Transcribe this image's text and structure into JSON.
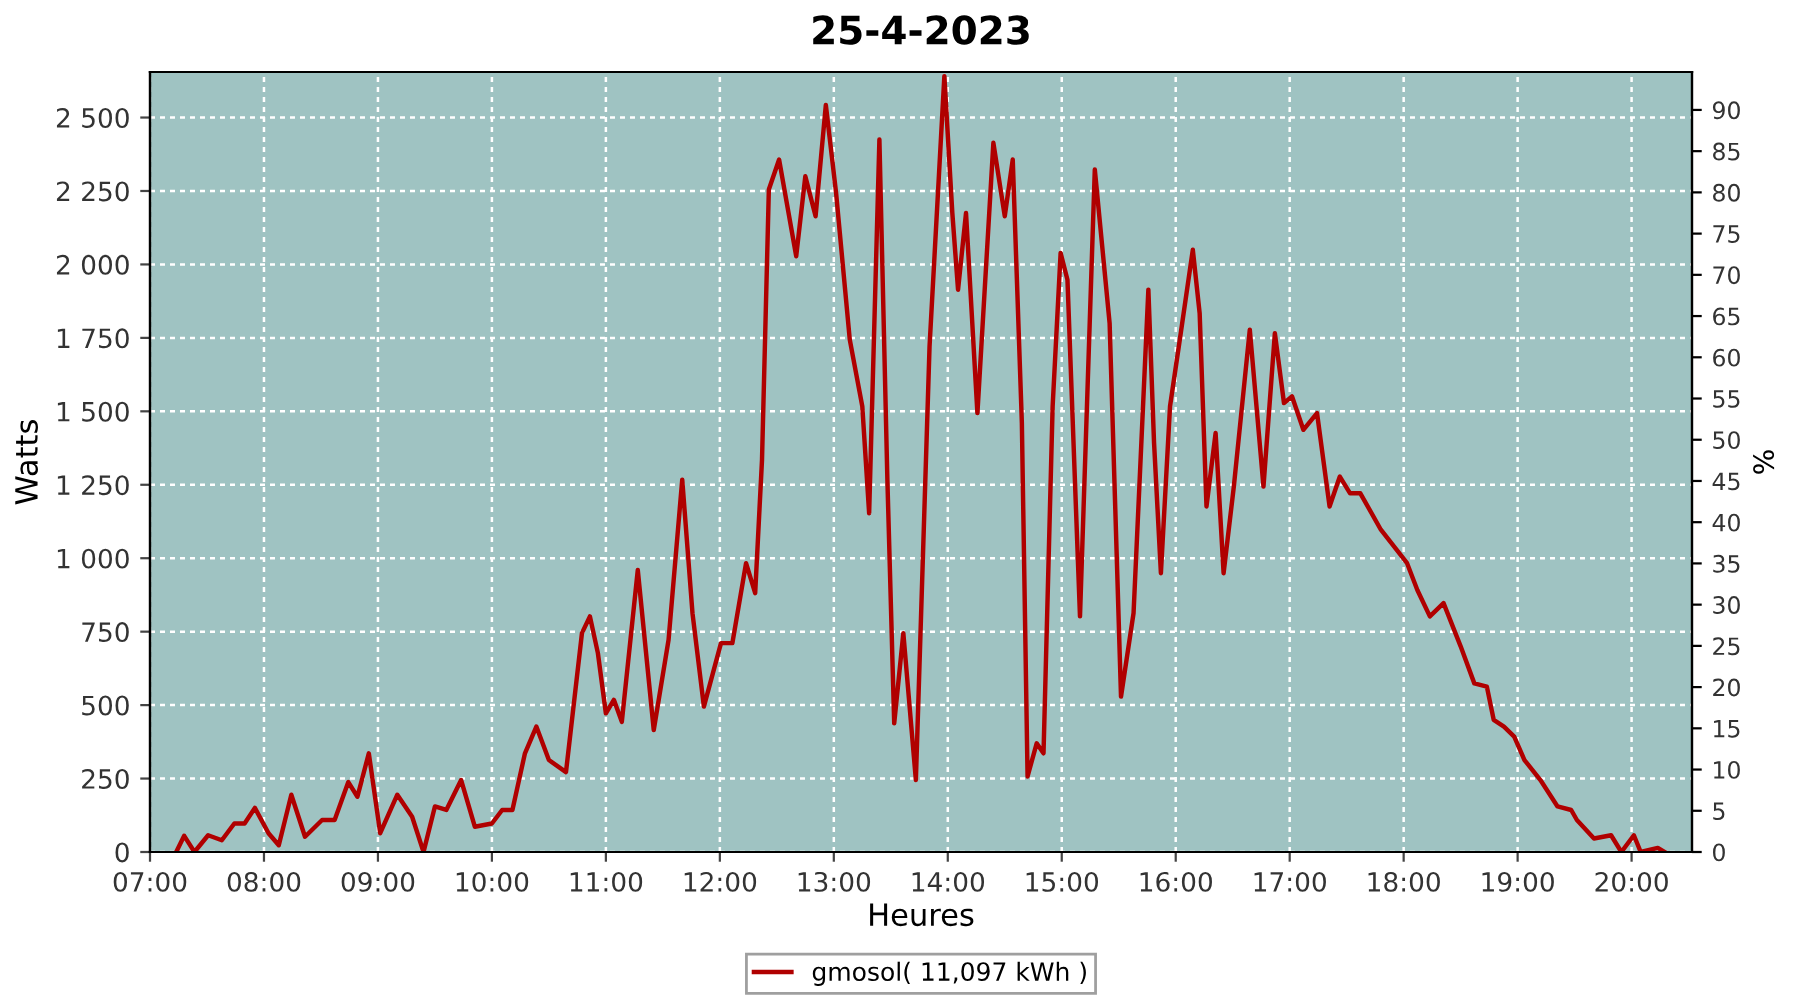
{
  "chart_data": {
    "type": "line",
    "title": "25-4-2023",
    "xlabel": "Heures",
    "ylabel": "Watts",
    "y2label": "%",
    "x": [
      7.23,
      7.3,
      7.39,
      7.51,
      7.63,
      7.74,
      7.83,
      7.92,
      8.04,
      8.13,
      8.24,
      8.36,
      8.51,
      8.62,
      8.74,
      8.82,
      8.92,
      9.02,
      9.17,
      9.3,
      9.4,
      9.5,
      9.6,
      9.73,
      9.85,
      10.0,
      10.09,
      10.18,
      10.29,
      10.39,
      10.5,
      10.65,
      10.79,
      10.86,
      10.93,
      11.0,
      11.07,
      11.14,
      11.28,
      11.42,
      11.55,
      11.67,
      11.76,
      11.86,
      12.01,
      12.11,
      12.23,
      12.31,
      12.37,
      12.43,
      12.52,
      12.67,
      12.75,
      12.84,
      12.93,
      13.02,
      13.14,
      13.25,
      13.31,
      13.4,
      13.47,
      13.53,
      13.61,
      13.72,
      13.84,
      13.97,
      14.04,
      14.09,
      14.16,
      14.26,
      14.4,
      14.5,
      14.57,
      14.65,
      14.7,
      14.78,
      14.84,
      14.92,
      14.99,
      15.05,
      15.16,
      15.29,
      15.42,
      15.52,
      15.63,
      15.76,
      15.81,
      15.87,
      15.95,
      16.04,
      16.15,
      16.21,
      16.27,
      16.35,
      16.42,
      16.51,
      16.65,
      16.77,
      16.87,
      16.95,
      17.02,
      17.12,
      17.24,
      17.35,
      17.44,
      17.53,
      17.62,
      17.8,
      18.03,
      18.12,
      18.23,
      18.35,
      18.5,
      18.62,
      18.73,
      18.79,
      18.88,
      18.97,
      19.06,
      19.2,
      19.35,
      19.47,
      19.52,
      19.67,
      19.82,
      19.91,
      20.02,
      20.08,
      20.23,
      20.29
    ],
    "series": [
      {
        "name": "gmosol( 11,097 kWh )",
        "color": "#b00000",
        "values": [
          0,
          55,
          0,
          57,
          40,
          97,
          97,
          150,
          64,
          23,
          195,
          52,
          109,
          109,
          238,
          188,
          336,
          64,
          195,
          120,
          0,
          155,
          143,
          245,
          86,
          97,
          143,
          143,
          336,
          427,
          313,
          272,
          745,
          802,
          677,
          472,
          518,
          443,
          960,
          415,
          722,
          1267,
          813,
          495,
          711,
          711,
          983,
          881,
          1335,
          2255,
          2357,
          2028,
          2300,
          2164,
          2543,
          2243,
          1744,
          1517,
          1153,
          2425,
          1267,
          438,
          745,
          245,
          1721,
          2641,
          2175,
          1914,
          2175,
          1494,
          2414,
          2164,
          2357,
          1460,
          257,
          370,
          336,
          1517,
          2039,
          1948,
          802,
          2323,
          1800,
          529,
          813,
          1914,
          1392,
          949,
          1517,
          1755,
          2050,
          1834,
          1176,
          1426,
          949,
          1244,
          1778,
          1244,
          1766,
          1528,
          1551,
          1437,
          1494,
          1176,
          1278,
          1221,
          1221,
          1097,
          983,
          892,
          802,
          847,
          700,
          574,
          563,
          450,
          427,
          393,
          313,
          245,
          155,
          143,
          109,
          46,
          57,
          0,
          57,
          0,
          14,
          0
        ]
      }
    ],
    "xlim": [
      7.0,
      20.53
    ],
    "xticks": [
      {
        "value": 7,
        "label": "07:00"
      },
      {
        "value": 8,
        "label": "08:00"
      },
      {
        "value": 9,
        "label": "09:00"
      },
      {
        "value": 10,
        "label": "10:00"
      },
      {
        "value": 11,
        "label": "11:00"
      },
      {
        "value": 12,
        "label": "12:00"
      },
      {
        "value": 13,
        "label": "13:00"
      },
      {
        "value": 14,
        "label": "14:00"
      },
      {
        "value": 15,
        "label": "15:00"
      },
      {
        "value": 16,
        "label": "16:00"
      },
      {
        "value": 17,
        "label": "17:00"
      },
      {
        "value": 18,
        "label": "18:00"
      },
      {
        "value": 19,
        "label": "19:00"
      },
      {
        "value": 20,
        "label": "20:00"
      }
    ],
    "ylim": [
      0,
      2655
    ],
    "yticks": [
      0,
      250,
      500,
      750,
      {
        "value": 1000,
        "label": "1 000"
      },
      {
        "value": 1250,
        "label": "1 250"
      },
      {
        "value": 1500,
        "label": "1 500"
      },
      {
        "value": 1750,
        "label": "1 750"
      },
      {
        "value": 2000,
        "label": "2 000"
      },
      {
        "value": 2250,
        "label": "2 250"
      },
      {
        "value": 2500,
        "label": "2 500"
      }
    ],
    "y2lim": [
      0,
      94.6
    ],
    "y2ticks": [
      0,
      5,
      10,
      15,
      20,
      25,
      30,
      35,
      40,
      45,
      50,
      55,
      60,
      65,
      70,
      75,
      80,
      85,
      90
    ],
    "grid": true,
    "legend": "bottom",
    "marker": "none",
    "line_style": "solid"
  }
}
